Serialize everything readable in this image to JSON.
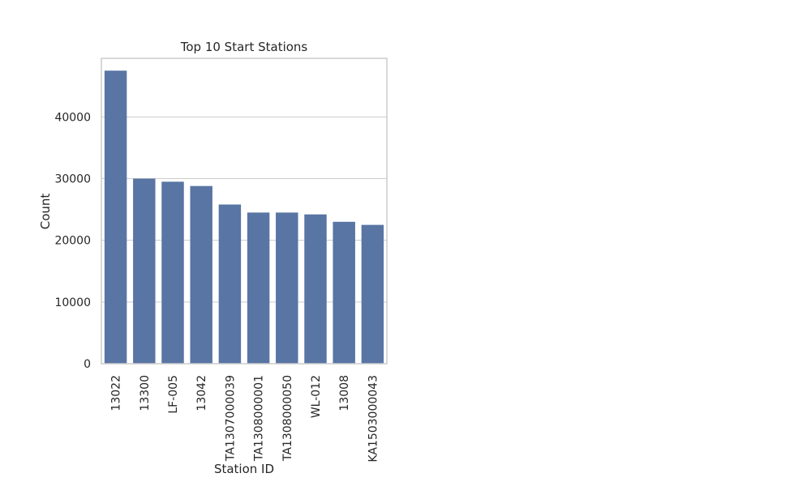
{
  "chart_data": {
    "type": "bar",
    "title": "Top 10 Start Stations",
    "xlabel": "Station ID",
    "ylabel": "Count",
    "categories": [
      "13022",
      "13300",
      "LF-005",
      "13042",
      "TA1307000039",
      "TA1308000001",
      "TA1308000050",
      "WL-012",
      "13008",
      "KA1503000043"
    ],
    "values": [
      47500,
      30000,
      29500,
      28800,
      25800,
      24500,
      24500,
      24200,
      23000,
      22500
    ],
    "ylim": [
      0,
      49500
    ],
    "yticks": [
      0,
      10000,
      20000,
      30000,
      40000
    ],
    "grid": "horizontal",
    "legend": "none",
    "colors": {
      "bar": "#5875a4",
      "grid": "#cccccc",
      "frame": "#cccccc",
      "text": "#262626"
    }
  }
}
